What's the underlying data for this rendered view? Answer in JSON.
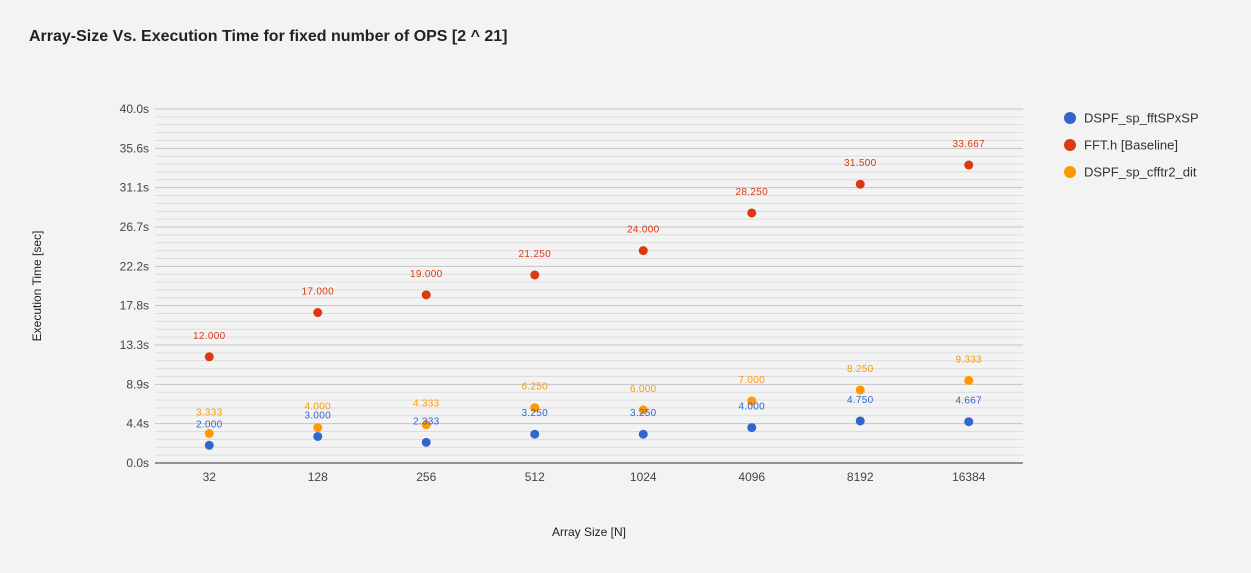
{
  "chart_data": {
    "type": "scatter",
    "title": "Array-Size Vs. Execution Time for fixed number of OPS [2 ^ 21]",
    "xlabel": "Array Size [N]",
    "ylabel": "Execution Time [sec]",
    "categories": [
      "32",
      "128",
      "256",
      "512",
      "1024",
      "4096",
      "8192",
      "16384"
    ],
    "ylim": [
      0,
      40
    ],
    "yticks": [
      "0.0s",
      "4.4s",
      "8.9s",
      "13.3s",
      "17.8s",
      "22.2s",
      "26.7s",
      "31.1s",
      "35.6s",
      "40.0s"
    ],
    "grid": true,
    "legend_position": "right",
    "series": [
      {
        "name": "DSPF_sp_fftSPxSP",
        "color": "#3366cc",
        "values": [
          2.0,
          3.0,
          2.333,
          3.25,
          3.25,
          4.0,
          4.75,
          4.667
        ],
        "labels": [
          "2.000",
          "3.000",
          "2.333",
          "3.250",
          "3.250",
          "4.000",
          "4.750",
          "4.667"
        ]
      },
      {
        "name": "FFT.h [Baseline]",
        "color": "#dc3912",
        "values": [
          12.0,
          17.0,
          19.0,
          21.25,
          24.0,
          28.25,
          31.5,
          33.667
        ],
        "labels": [
          "12.000",
          "17.000",
          "19.000",
          "21.250",
          "24.000",
          "28.250",
          "31.500",
          "33.667"
        ]
      },
      {
        "name": "DSPF_sp_cfftr2_dit",
        "color": "#ff9900",
        "values": [
          3.333,
          4.0,
          4.333,
          6.25,
          6.0,
          7.0,
          8.25,
          9.333
        ],
        "labels": [
          "3.333",
          "4.000",
          "4.333",
          "6.250",
          "6.000",
          "7.000",
          "8.250",
          "9.333"
        ]
      }
    ]
  }
}
